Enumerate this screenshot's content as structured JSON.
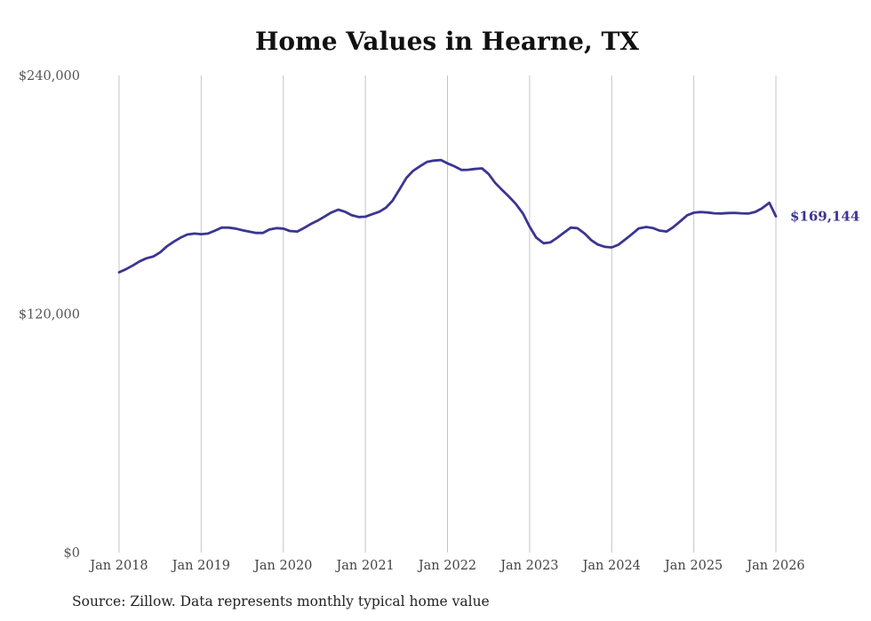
{
  "chart_data": {
    "type": "line",
    "title": "Home Values in Hearne, TX",
    "source_note": "Source: Zillow. Data represents monthly typical home value",
    "xlabel": "",
    "ylabel": "",
    "ylim": [
      0,
      240000
    ],
    "y_ticks": [
      0,
      120000,
      240000
    ],
    "y_tick_labels": [
      "$0",
      "$120,000",
      "$240,000"
    ],
    "x_range": [
      2018,
      2026
    ],
    "x_ticks": [
      2018,
      2019,
      2020,
      2021,
      2022,
      2023,
      2024,
      2025,
      2026
    ],
    "x_tick_labels": [
      "Jan 2018",
      "Jan 2019",
      "Jan 2020",
      "Jan 2021",
      "Jan 2022",
      "Jan 2023",
      "Jan 2024",
      "Jan 2025",
      "Jan 2026"
    ],
    "grid": "vertical",
    "line_color": "#3b3591",
    "end_label": "$169,144",
    "series": [
      {
        "name": "Typical home value",
        "x": [
          2018.0,
          2018.08,
          2018.17,
          2018.25,
          2018.33,
          2018.42,
          2018.5,
          2018.58,
          2018.67,
          2018.75,
          2018.83,
          2018.92,
          2019.0,
          2019.08,
          2019.17,
          2019.25,
          2019.33,
          2019.42,
          2019.5,
          2019.58,
          2019.67,
          2019.75,
          2019.83,
          2019.92,
          2020.0,
          2020.08,
          2020.17,
          2020.25,
          2020.33,
          2020.42,
          2020.5,
          2020.58,
          2020.67,
          2020.75,
          2020.83,
          2020.92,
          2021.0,
          2021.08,
          2021.17,
          2021.25,
          2021.33,
          2021.42,
          2021.5,
          2021.58,
          2021.67,
          2021.75,
          2021.83,
          2021.92,
          2022.0,
          2022.08,
          2022.17,
          2022.25,
          2022.33,
          2022.42,
          2022.5,
          2022.58,
          2022.67,
          2022.75,
          2022.83,
          2022.92,
          2023.0,
          2023.08,
          2023.17,
          2023.25,
          2023.33,
          2023.42,
          2023.5,
          2023.58,
          2023.67,
          2023.75,
          2023.83,
          2023.92,
          2024.0,
          2024.08,
          2024.17,
          2024.25,
          2024.33,
          2024.42,
          2024.5,
          2024.58,
          2024.67,
          2024.75,
          2024.83,
          2024.92,
          2025.0,
          2025.08,
          2025.17,
          2025.25,
          2025.33,
          2025.42,
          2025.5,
          2025.58,
          2025.67,
          2025.75,
          2025.83,
          2025.92,
          2026.0
        ],
        "values": [
          141000,
          142500,
          144500,
          146500,
          148000,
          149000,
          151000,
          154000,
          156500,
          158500,
          160000,
          160500,
          160200,
          160500,
          162000,
          163500,
          163500,
          163000,
          162200,
          161500,
          160800,
          160800,
          162500,
          163200,
          163000,
          161800,
          161500,
          163200,
          165200,
          167000,
          169000,
          171000,
          172500,
          171500,
          169800,
          168800,
          169000,
          170200,
          171500,
          173500,
          177000,
          183000,
          188500,
          192000,
          194500,
          196500,
          197200,
          197500,
          195800,
          194400,
          192500,
          192600,
          193000,
          193300,
          190500,
          186000,
          182200,
          179000,
          175500,
          170500,
          164000,
          158500,
          155600,
          156000,
          158200,
          161000,
          163500,
          163200,
          160500,
          157200,
          155000,
          153800,
          153500,
          154800,
          157700,
          160300,
          163100,
          163800,
          163300,
          162000,
          161500,
          163700,
          166500,
          169700,
          171000,
          171300,
          171100,
          170700,
          170600,
          170800,
          170900,
          170700,
          170600,
          171400,
          173200,
          176000,
          169144
        ]
      }
    ]
  }
}
